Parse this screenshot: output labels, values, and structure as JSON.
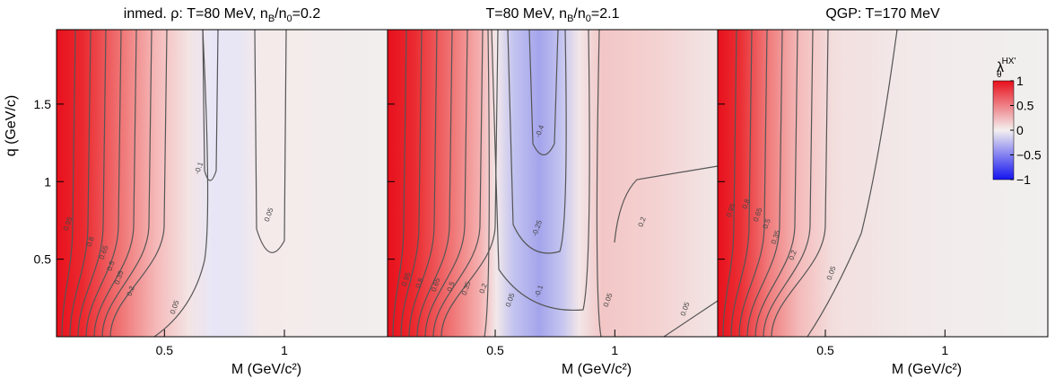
{
  "chart_data": [
    {
      "type": "heatmap",
      "title": [
        "inmed. ρ: T=80 MeV, n",
        "B",
        "/n",
        "0",
        "=0.2"
      ],
      "xlabel": "M (GeV/c²)",
      "ylabel": "q (GeV/c)",
      "xlim": [
        0.05,
        1.43
      ],
      "ylim": [
        0,
        1.98
      ],
      "xticks": [
        0.5,
        1
      ],
      "yticks": [
        0.5,
        1,
        1.5
      ],
      "contour_labels": [
        0.95,
        0.8,
        0.65,
        0.5,
        0.35,
        0.2,
        0.05,
        -0.1,
        0.05
      ]
    },
    {
      "type": "heatmap",
      "title": [
        "T=80 MeV, n",
        "B",
        "/n",
        "0",
        "=2.1"
      ],
      "xlabel": "M (GeV/c²)",
      "xlim": [
        0.05,
        1.43
      ],
      "ylim": [
        0,
        1.98
      ],
      "xticks": [
        0.5,
        1
      ],
      "contour_labels": [
        0.95,
        0.8,
        0.65,
        0.5,
        0.35,
        0.2,
        0.05,
        -0.1,
        -0.25,
        -0.4,
        0.05,
        0.2,
        0.05
      ]
    },
    {
      "type": "heatmap",
      "title": [
        "QGP: T=170 MeV"
      ],
      "xlabel": "M (GeV/c²)",
      "xlim": [
        0.05,
        1.43
      ],
      "ylim": [
        0,
        1.98
      ],
      "xticks": [
        0.5,
        1
      ],
      "contour_labels": [
        0.95,
        0.8,
        0.65,
        0.5,
        0.35,
        0.2,
        0.05
      ],
      "colorbar": {
        "label": [
          "λ",
          "θ",
          "HX'"
        ],
        "lim": [
          -1,
          1
        ],
        "ticks": [
          1,
          0.5,
          0,
          {
            "value": -0.5,
            "label": "−0.5"
          },
          {
            "value": -1,
            "label": "−1"
          }
        ]
      }
    }
  ]
}
